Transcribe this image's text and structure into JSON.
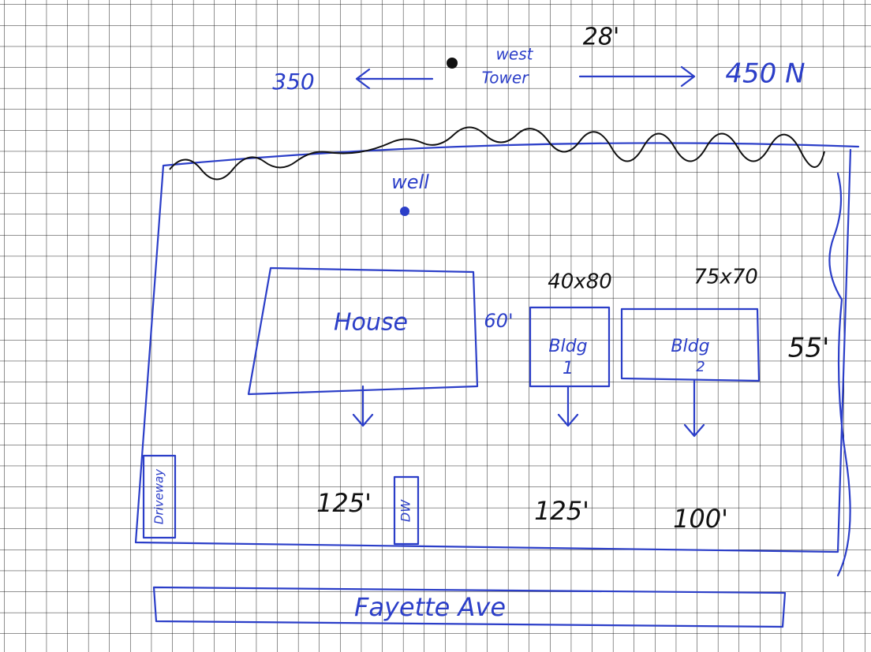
{
  "tower": {
    "label_top": "west",
    "label_bottom": "Tower",
    "height": "28'"
  },
  "distances": {
    "west": "350",
    "east": "450 N"
  },
  "well": "well",
  "buildings": [
    {
      "label": "House",
      "setback": "125'"
    },
    {
      "label": "Bldg",
      "number": "1",
      "size": "40x80",
      "setback": "125'"
    },
    {
      "label": "Bldg",
      "number": "2",
      "size": "75x70",
      "setback": "100'"
    }
  ],
  "dimensions": {
    "gap": "60'",
    "side": "55'"
  },
  "driveways": [
    "Driveway",
    "DW"
  ],
  "street": "Fayette Ave"
}
